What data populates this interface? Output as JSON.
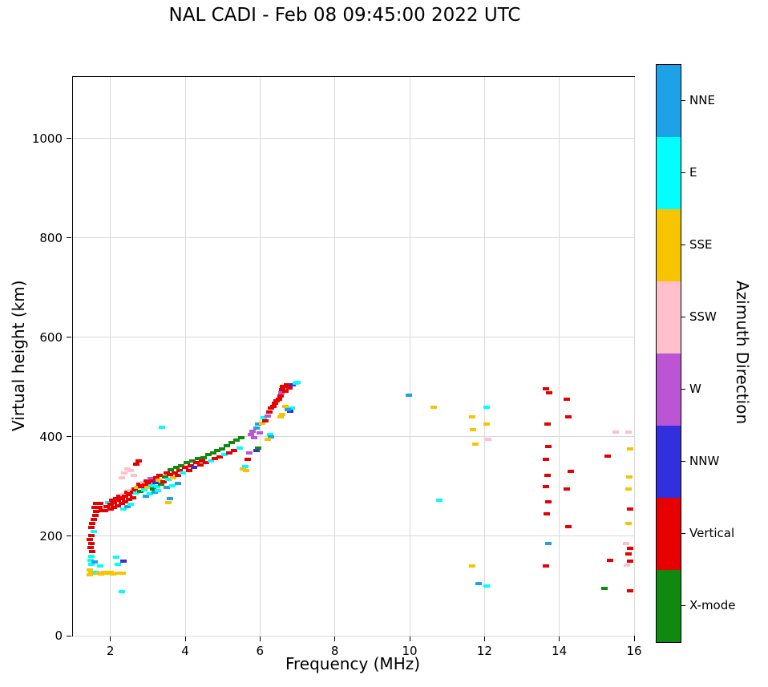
{
  "chart_data": {
    "type": "scatter",
    "title": "NAL CADI - Feb 08 09:45:00 2022 UTC",
    "xlabel": "Frequency (MHz)",
    "ylabel": "Virtual height (km)",
    "colorbar_label": "Azimuth Direction",
    "xlim": [
      1,
      16
    ],
    "ylim": [
      0,
      1124
    ],
    "x_ticks": [
      2,
      4,
      6,
      8,
      10,
      12,
      14,
      16
    ],
    "y_ticks": [
      0,
      200,
      400,
      600,
      800,
      1000
    ],
    "grid": true,
    "legend_position": "right-colorbar",
    "legend": [
      {
        "label": "NNE",
        "color": "#1da2e8"
      },
      {
        "label": "E",
        "color": "#00ffff"
      },
      {
        "label": "SSE",
        "color": "#f7c500"
      },
      {
        "label": "SSW",
        "color": "#ffc0cb"
      },
      {
        "label": "W",
        "color": "#bb55d4"
      },
      {
        "label": "NNW",
        "color": "#3230dd"
      },
      {
        "label": "Vertical",
        "color": "#e60000"
      },
      {
        "label": "X-mode",
        "color": "#0f8a0f"
      }
    ],
    "colors": {
      "NNE": "#1da2e8",
      "E": "#00ffff",
      "SSE": "#f7c500",
      "SSW": "#ffc0cb",
      "W": "#bb55d4",
      "NNW": "#3230dd",
      "V": "#e60000",
      "X": "#0f8a0f"
    },
    "points": [
      [
        1.45,
        122,
        "SSE"
      ],
      [
        1.5,
        127,
        "SSE"
      ],
      [
        1.57,
        125,
        "SSE"
      ],
      [
        1.45,
        132,
        "SSE"
      ],
      [
        1.5,
        143,
        "E"
      ],
      [
        1.47,
        152,
        "E"
      ],
      [
        1.5,
        160,
        "E"
      ],
      [
        1.57,
        148,
        "NNE"
      ],
      [
        1.62,
        128,
        "E"
      ],
      [
        1.52,
        170,
        "V"
      ],
      [
        1.47,
        178,
        "V"
      ],
      [
        1.5,
        186,
        "V"
      ],
      [
        1.45,
        194,
        "V"
      ],
      [
        1.5,
        202,
        "V"
      ],
      [
        1.55,
        210,
        "E"
      ],
      [
        1.5,
        218,
        "V"
      ],
      [
        1.52,
        226,
        "V"
      ],
      [
        1.55,
        234,
        "V"
      ],
      [
        1.6,
        242,
        "V"
      ],
      [
        1.62,
        250,
        "V"
      ],
      [
        1.58,
        258,
        "V"
      ],
      [
        1.62,
        266,
        "V"
      ],
      [
        1.68,
        126,
        "SSE"
      ],
      [
        1.76,
        124,
        "SSE"
      ],
      [
        1.84,
        127,
        "SSE"
      ],
      [
        1.92,
        125,
        "SSE"
      ],
      [
        2.0,
        127,
        "SSE"
      ],
      [
        2.08,
        124,
        "SSE"
      ],
      [
        2.2,
        126,
        "SSE"
      ],
      [
        2.33,
        125,
        "SSE"
      ],
      [
        1.72,
        140,
        "E"
      ],
      [
        2.3,
        89,
        "E"
      ],
      [
        2.2,
        143,
        "E"
      ],
      [
        2.35,
        150,
        "NNW"
      ],
      [
        2.15,
        158,
        "E"
      ],
      [
        1.7,
        258,
        "V"
      ],
      [
        1.72,
        266,
        "V"
      ],
      [
        1.78,
        252,
        "V"
      ],
      [
        1.85,
        252,
        "V"
      ],
      [
        1.9,
        260,
        "V"
      ],
      [
        1.95,
        268,
        "E"
      ],
      [
        2.0,
        255,
        "V"
      ],
      [
        2.0,
        265,
        "V"
      ],
      [
        2.05,
        272,
        "V"
      ],
      [
        2.1,
        258,
        "V"
      ],
      [
        2.1,
        268,
        "V"
      ],
      [
        2.15,
        276,
        "V"
      ],
      [
        2.2,
        262,
        "V"
      ],
      [
        2.2,
        272,
        "V"
      ],
      [
        2.25,
        280,
        "V"
      ],
      [
        2.3,
        266,
        "V"
      ],
      [
        2.3,
        276,
        "V"
      ],
      [
        2.35,
        284,
        "SSW"
      ],
      [
        2.4,
        270,
        "V"
      ],
      [
        2.4,
        280,
        "V"
      ],
      [
        2.45,
        288,
        "V"
      ],
      [
        2.5,
        274,
        "V"
      ],
      [
        2.5,
        284,
        "V"
      ],
      [
        2.55,
        292,
        "SSW"
      ],
      [
        2.6,
        278,
        "V"
      ],
      [
        2.6,
        288,
        "V"
      ],
      [
        2.35,
        255,
        "E"
      ],
      [
        2.45,
        260,
        "NNE"
      ],
      [
        2.55,
        265,
        "E"
      ],
      [
        2.3,
        318,
        "SSW"
      ],
      [
        2.38,
        328,
        "SSW"
      ],
      [
        2.46,
        336,
        "SSW"
      ],
      [
        2.55,
        332,
        "SSW"
      ],
      [
        2.62,
        322,
        "SSW"
      ],
      [
        2.7,
        345,
        "V"
      ],
      [
        2.75,
        352,
        "V"
      ],
      [
        2.65,
        295,
        "V"
      ],
      [
        2.7,
        287,
        "E"
      ],
      [
        2.72,
        298,
        "SSE"
      ],
      [
        2.78,
        305,
        "V"
      ],
      [
        2.8,
        290,
        "X"
      ],
      [
        2.82,
        300,
        "V"
      ],
      [
        2.88,
        308,
        "SSW"
      ],
      [
        2.9,
        293,
        "E"
      ],
      [
        2.92,
        303,
        "V"
      ],
      [
        2.97,
        312,
        "V"
      ],
      [
        3.0,
        298,
        "SSE"
      ],
      [
        3.02,
        308,
        "V"
      ],
      [
        3.07,
        316,
        "W"
      ],
      [
        3.1,
        302,
        "E"
      ],
      [
        3.12,
        312,
        "V"
      ],
      [
        3.15,
        295,
        "X"
      ],
      [
        3.2,
        308,
        "NNW"
      ],
      [
        3.22,
        318,
        "V"
      ],
      [
        3.26,
        300,
        "E"
      ],
      [
        3.3,
        313,
        "SSE"
      ],
      [
        3.32,
        322,
        "V"
      ],
      [
        3.36,
        305,
        "X"
      ],
      [
        2.95,
        280,
        "NNE"
      ],
      [
        3.05,
        285,
        "E"
      ],
      [
        3.18,
        288,
        "NNE"
      ],
      [
        3.28,
        292,
        "E"
      ],
      [
        3.38,
        420,
        "E"
      ],
      [
        3.42,
        310,
        "V"
      ],
      [
        3.46,
        320,
        "X"
      ],
      [
        3.5,
        328,
        "V"
      ],
      [
        3.55,
        314,
        "E"
      ],
      [
        3.6,
        324,
        "V"
      ],
      [
        3.62,
        334,
        "X"
      ],
      [
        3.68,
        318,
        "SSE"
      ],
      [
        3.72,
        328,
        "V"
      ],
      [
        3.76,
        338,
        "X"
      ],
      [
        3.8,
        322,
        "V"
      ],
      [
        3.85,
        332,
        "V"
      ],
      [
        3.9,
        342,
        "X"
      ],
      [
        3.94,
        328,
        "E"
      ],
      [
        4.0,
        338,
        "V"
      ],
      [
        4.04,
        348,
        "X"
      ],
      [
        4.1,
        333,
        "V"
      ],
      [
        4.15,
        342,
        "V"
      ],
      [
        4.2,
        352,
        "X"
      ],
      [
        4.24,
        338,
        "NNW"
      ],
      [
        4.3,
        348,
        "V"
      ],
      [
        4.34,
        356,
        "X"
      ],
      [
        4.4,
        344,
        "V"
      ],
      [
        4.45,
        352,
        "V"
      ],
      [
        3.5,
        298,
        "NNE"
      ],
      [
        3.65,
        302,
        "E"
      ],
      [
        3.8,
        306,
        "NNE"
      ],
      [
        3.56,
        268,
        "SSE"
      ],
      [
        3.6,
        275,
        "NNE"
      ],
      [
        4.5,
        358,
        "X"
      ],
      [
        4.55,
        348,
        "V"
      ],
      [
        4.62,
        364,
        "X"
      ],
      [
        4.68,
        352,
        "E"
      ],
      [
        4.74,
        368,
        "X"
      ],
      [
        4.8,
        356,
        "V"
      ],
      [
        4.86,
        372,
        "X"
      ],
      [
        4.92,
        360,
        "V"
      ],
      [
        4.98,
        376,
        "X"
      ],
      [
        5.05,
        364,
        "E"
      ],
      [
        5.12,
        382,
        "X"
      ],
      [
        5.18,
        368,
        "V"
      ],
      [
        5.25,
        388,
        "X"
      ],
      [
        5.3,
        372,
        "V"
      ],
      [
        5.38,
        394,
        "X"
      ],
      [
        5.45,
        378,
        "E"
      ],
      [
        5.5,
        398,
        "X"
      ],
      [
        5.55,
        335,
        "SSE"
      ],
      [
        5.6,
        340,
        "E"
      ],
      [
        5.62,
        332,
        "SSE"
      ],
      [
        5.68,
        355,
        "V"
      ],
      [
        5.72,
        368,
        "W"
      ],
      [
        5.75,
        405,
        "W"
      ],
      [
        5.8,
        412,
        "W"
      ],
      [
        5.85,
        398,
        "W"
      ],
      [
        5.9,
        372,
        "NNW"
      ],
      [
        5.95,
        378,
        "X"
      ],
      [
        5.9,
        418,
        "NNE"
      ],
      [
        5.95,
        425,
        "NNE"
      ],
      [
        6.0,
        408,
        "W"
      ],
      [
        6.05,
        428,
        "SSE"
      ],
      [
        6.1,
        438,
        "E"
      ],
      [
        6.15,
        432,
        "V"
      ],
      [
        6.2,
        442,
        "W"
      ],
      [
        6.25,
        450,
        "V"
      ],
      [
        6.28,
        405,
        "E"
      ],
      [
        6.3,
        458,
        "V"
      ],
      [
        6.35,
        462,
        "V"
      ],
      [
        6.4,
        468,
        "V"
      ],
      [
        6.45,
        472,
        "V"
      ],
      [
        6.3,
        400,
        "NNE"
      ],
      [
        6.2,
        395,
        "SSE"
      ],
      [
        6.5,
        476,
        "V"
      ],
      [
        6.55,
        482,
        "V"
      ],
      [
        6.58,
        488,
        "W"
      ],
      [
        6.6,
        495,
        "V"
      ],
      [
        6.62,
        502,
        "V"
      ],
      [
        6.68,
        492,
        "V"
      ],
      [
        6.72,
        504,
        "V"
      ],
      [
        6.78,
        498,
        "V"
      ],
      [
        6.8,
        452,
        "NNW"
      ],
      [
        6.85,
        458,
        "E"
      ],
      [
        6.88,
        505,
        "NNW"
      ],
      [
        6.95,
        508,
        "E"
      ],
      [
        7.0,
        510,
        "E"
      ],
      [
        6.6,
        445,
        "SSE"
      ],
      [
        6.68,
        462,
        "SSE"
      ],
      [
        6.55,
        440,
        "SSE"
      ],
      [
        6.75,
        455,
        "NNE"
      ],
      [
        9.98,
        483,
        "NNE"
      ],
      [
        10.65,
        460,
        "SSE"
      ],
      [
        10.8,
        272,
        "E"
      ],
      [
        11.68,
        440,
        "SSE"
      ],
      [
        11.7,
        415,
        "SSE"
      ],
      [
        11.75,
        385,
        "SSE"
      ],
      [
        11.68,
        140,
        "SSE"
      ],
      [
        11.85,
        105,
        "NNE"
      ],
      [
        12.05,
        100,
        "E"
      ],
      [
        12.05,
        460,
        "E"
      ],
      [
        12.05,
        425,
        "SSE"
      ],
      [
        12.1,
        395,
        "SSW"
      ],
      [
        13.65,
        497,
        "V"
      ],
      [
        13.72,
        488,
        "V"
      ],
      [
        14.2,
        475,
        "V"
      ],
      [
        14.25,
        440,
        "V"
      ],
      [
        13.68,
        425,
        "V"
      ],
      [
        13.7,
        380,
        "V"
      ],
      [
        13.65,
        355,
        "V"
      ],
      [
        14.3,
        330,
        "V"
      ],
      [
        13.68,
        322,
        "V"
      ],
      [
        13.65,
        300,
        "V"
      ],
      [
        14.2,
        295,
        "V"
      ],
      [
        13.7,
        270,
        "V"
      ],
      [
        13.66,
        245,
        "V"
      ],
      [
        14.25,
        220,
        "V"
      ],
      [
        13.7,
        185,
        "NNE"
      ],
      [
        13.65,
        140,
        "V"
      ],
      [
        15.5,
        410,
        "SSW"
      ],
      [
        15.85,
        410,
        "SSW"
      ],
      [
        15.3,
        362,
        "V"
      ],
      [
        15.9,
        375,
        "SSE"
      ],
      [
        15.88,
        320,
        "SSE"
      ],
      [
        15.85,
        295,
        "SSE"
      ],
      [
        15.9,
        255,
        "V"
      ],
      [
        15.85,
        225,
        "SSE"
      ],
      [
        15.78,
        185,
        "SSW"
      ],
      [
        15.9,
        175,
        "V"
      ],
      [
        15.85,
        165,
        "V"
      ],
      [
        15.9,
        150,
        "V"
      ],
      [
        15.35,
        152,
        "V"
      ],
      [
        15.2,
        95,
        "X"
      ],
      [
        15.9,
        90,
        "V"
      ],
      [
        15.8,
        142,
        "SSW"
      ]
    ]
  }
}
